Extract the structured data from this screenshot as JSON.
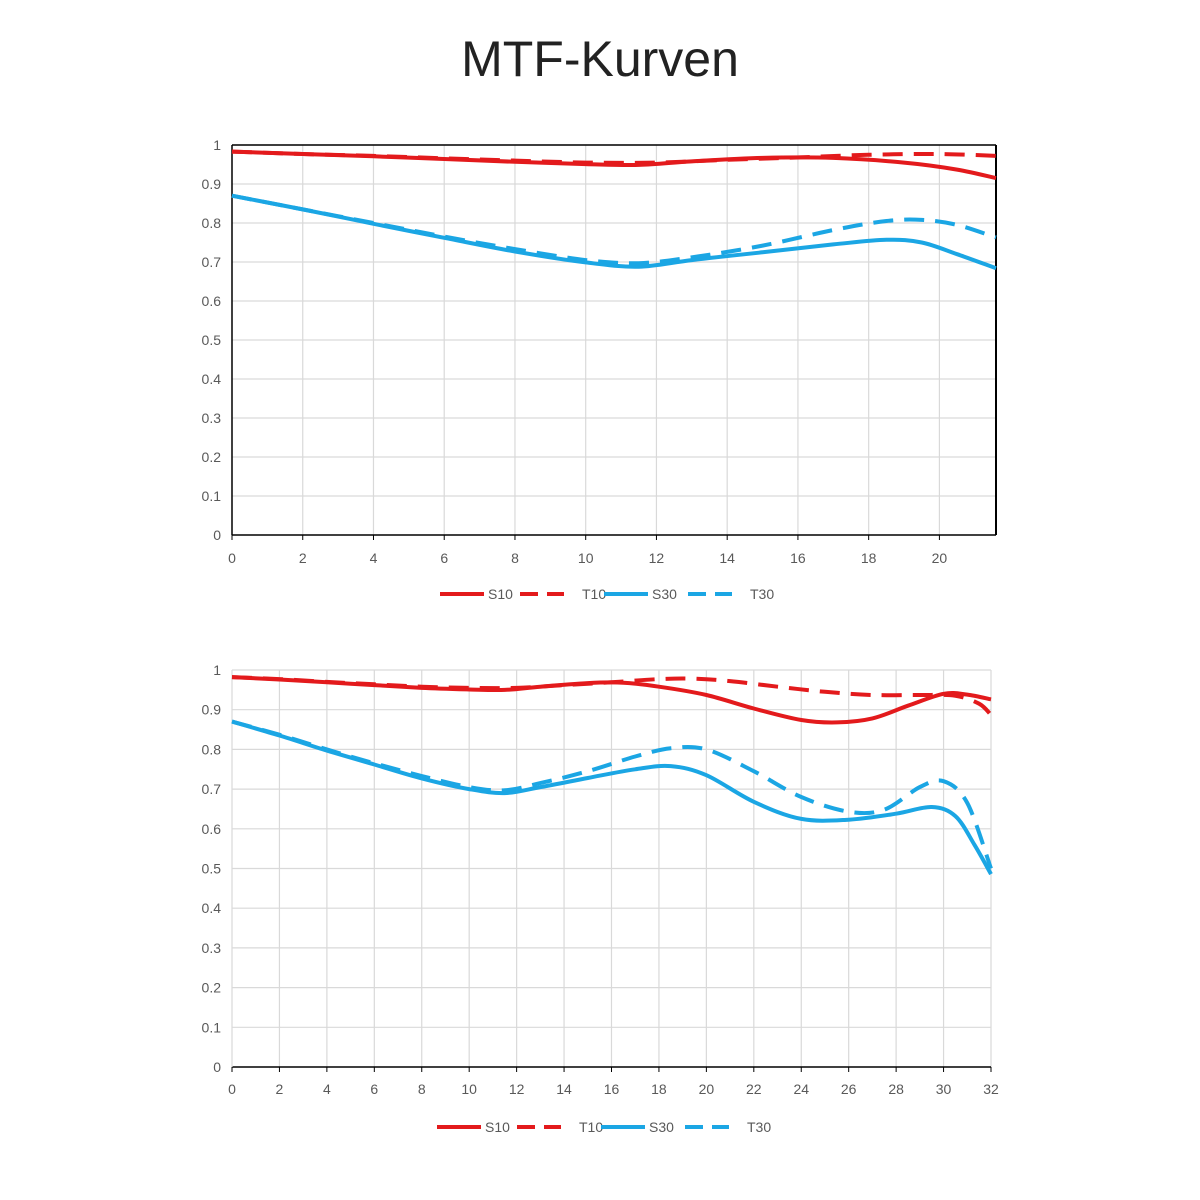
{
  "title": "MTF-Kurven",
  "colors": {
    "red": "#e31a1c",
    "blue": "#1ba6e4",
    "grid": "#d9d9d9",
    "axis": "#000000"
  },
  "chart_data": [
    {
      "type": "line",
      "title": "",
      "xlabel": "",
      "ylabel": "",
      "xlim": [
        0,
        21.6
      ],
      "ylim": [
        0,
        1
      ],
      "xticks": [
        0,
        2,
        4,
        6,
        8,
        10,
        12,
        14,
        16,
        18,
        20
      ],
      "yticks": [
        0,
        0.1,
        0.2,
        0.3,
        0.4,
        0.5,
        0.6,
        0.7,
        0.8,
        0.9,
        1
      ],
      "ytick_labels": [
        "0",
        "0.1",
        "0.2",
        "0.3",
        "0.4",
        "0.5",
        "0.6",
        "0.7",
        "0.8",
        "0.9",
        "1"
      ],
      "grid": true,
      "legend": "bottom",
      "series": [
        {
          "name": "S10",
          "color": "#e31a1c",
          "dash": false,
          "x": [
            0,
            2,
            4,
            6,
            8,
            10,
            11.5,
            13,
            15,
            17,
            19,
            20.5,
            21.6
          ],
          "y": [
            0.983,
            0.977,
            0.971,
            0.964,
            0.957,
            0.951,
            0.949,
            0.958,
            0.967,
            0.967,
            0.955,
            0.937,
            0.915
          ]
        },
        {
          "name": "T10",
          "color": "#e31a1c",
          "dash": true,
          "x": [
            0,
            2,
            4,
            6,
            8,
            10,
            12,
            14,
            16,
            18,
            20,
            21.6
          ],
          "y": [
            0.983,
            0.977,
            0.972,
            0.966,
            0.96,
            0.955,
            0.955,
            0.962,
            0.968,
            0.975,
            0.977,
            0.972
          ]
        },
        {
          "name": "S30",
          "color": "#1ba6e4",
          "dash": false,
          "x": [
            0,
            2,
            4,
            6,
            8,
            10,
            11.5,
            13,
            15,
            17,
            18.5,
            19.5,
            20.5,
            21.6
          ],
          "y": [
            0.87,
            0.835,
            0.798,
            0.762,
            0.727,
            0.699,
            0.688,
            0.705,
            0.725,
            0.745,
            0.757,
            0.75,
            0.72,
            0.684
          ]
        },
        {
          "name": "T30",
          "color": "#1ba6e4",
          "dash": true,
          "x": [
            0,
            2,
            4,
            6,
            8,
            10,
            11.5,
            13,
            15,
            17,
            18.5,
            19.5,
            20.5,
            21.6
          ],
          "y": [
            0.87,
            0.835,
            0.8,
            0.765,
            0.733,
            0.705,
            0.697,
            0.712,
            0.742,
            0.782,
            0.805,
            0.808,
            0.795,
            0.763
          ]
        }
      ]
    },
    {
      "type": "line",
      "title": "",
      "xlabel": "",
      "ylabel": "",
      "xlim": [
        0,
        32
      ],
      "ylim": [
        0,
        1
      ],
      "xticks": [
        0,
        2,
        4,
        6,
        8,
        10,
        12,
        14,
        16,
        18,
        20,
        22,
        24,
        26,
        28,
        30,
        32
      ],
      "yticks": [
        0,
        0.1,
        0.2,
        0.3,
        0.4,
        0.5,
        0.6,
        0.7,
        0.8,
        0.9,
        1
      ],
      "ytick_labels": [
        "0",
        "0.1",
        "0.2",
        "0.3",
        "0.4",
        "0.5",
        "0.6",
        "0.7",
        "0.8",
        "0.9",
        "1"
      ],
      "grid": true,
      "legend": "bottom",
      "series": [
        {
          "name": "S10",
          "color": "#e31a1c",
          "dash": false,
          "x": [
            0,
            2,
            4,
            6,
            8,
            10,
            11.5,
            13,
            15,
            16.5,
            18,
            20,
            22,
            24,
            25.5,
            27,
            28.5,
            30,
            31,
            32
          ],
          "y": [
            0.982,
            0.976,
            0.969,
            0.962,
            0.955,
            0.951,
            0.95,
            0.958,
            0.967,
            0.968,
            0.958,
            0.937,
            0.903,
            0.874,
            0.868,
            0.878,
            0.91,
            0.94,
            0.938,
            0.926
          ]
        },
        {
          "name": "T10",
          "color": "#e31a1c",
          "dash": true,
          "x": [
            0,
            2,
            4,
            6,
            8,
            10,
            12,
            14,
            16,
            18,
            19.5,
            21,
            23,
            25,
            27,
            29,
            30.5,
            31.5,
            32
          ],
          "y": [
            0.982,
            0.977,
            0.97,
            0.964,
            0.958,
            0.955,
            0.955,
            0.962,
            0.969,
            0.977,
            0.978,
            0.972,
            0.958,
            0.945,
            0.937,
            0.937,
            0.935,
            0.915,
            0.887
          ]
        },
        {
          "name": "S30",
          "color": "#1ba6e4",
          "dash": false,
          "x": [
            0,
            2,
            4,
            6,
            8,
            10,
            11.5,
            13,
            15,
            17,
            18.5,
            20,
            22,
            24,
            26,
            28,
            29.5,
            30.5,
            31.3,
            32
          ],
          "y": [
            0.87,
            0.835,
            0.797,
            0.762,
            0.727,
            0.7,
            0.69,
            0.705,
            0.728,
            0.75,
            0.758,
            0.735,
            0.668,
            0.625,
            0.623,
            0.638,
            0.655,
            0.632,
            0.56,
            0.486
          ]
        },
        {
          "name": "T30",
          "color": "#1ba6e4",
          "dash": true,
          "x": [
            0,
            2,
            4,
            6,
            8,
            10,
            11.5,
            13,
            15,
            17,
            18.5,
            20,
            22,
            24,
            26,
            27.5,
            29,
            30,
            31,
            32
          ],
          "y": [
            0.87,
            0.837,
            0.8,
            0.765,
            0.733,
            0.705,
            0.697,
            0.715,
            0.745,
            0.782,
            0.803,
            0.8,
            0.745,
            0.68,
            0.643,
            0.648,
            0.705,
            0.72,
            0.665,
            0.5
          ]
        }
      ]
    }
  ]
}
